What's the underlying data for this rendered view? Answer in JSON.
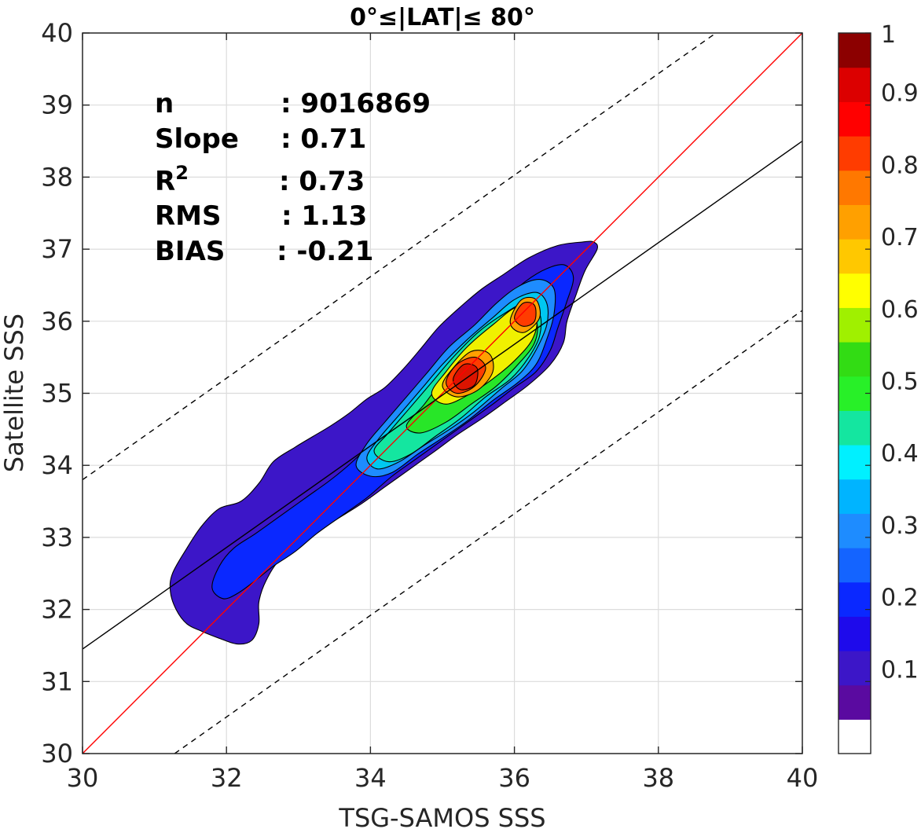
{
  "chart_data": {
    "type": "heatmap",
    "subtype": "filled-contour density scatter",
    "title": "0°≤|LAT|≤ 80°",
    "xlabel": "TSG-SAMOS SSS",
    "ylabel": "Satellite SSS",
    "xlim": [
      30,
      40
    ],
    "ylim": [
      30,
      40
    ],
    "xticks": [
      "30",
      "32",
      "34",
      "36",
      "38",
      "40"
    ],
    "yticks": [
      "30",
      "31",
      "32",
      "33",
      "34",
      "35",
      "36",
      "37",
      "38",
      "39",
      "40"
    ],
    "grid": true,
    "stats": [
      {
        "key": "n",
        "value": ": 9016869"
      },
      {
        "key": "Slope",
        "value": ": 0.71"
      },
      {
        "key": "R",
        "sup": "2",
        "value": ": 0.73"
      },
      {
        "key": "RMS",
        "value": ": 1.13"
      },
      {
        "key": "BIAS",
        "value": ": -0.21"
      }
    ],
    "lines": {
      "identity": {
        "x": [
          30,
          40
        ],
        "y": [
          30,
          40
        ],
        "color": "#ff0000"
      },
      "regression": {
        "x": [
          30,
          40
        ],
        "y": [
          31.45,
          38.5
        ],
        "color": "#000000"
      },
      "upper_bound": {
        "x": [
          30,
          38.8
        ],
        "y": [
          33.8,
          40
        ],
        "color": "#000000",
        "dash": true
      },
      "lower_bound": {
        "x": [
          31.28,
          40
        ],
        "y": [
          30,
          36.15
        ],
        "color": "#000000",
        "dash": true
      }
    },
    "contours": [
      {
        "level": 0.05,
        "color": "#3c16c8",
        "points": [
          [
            31.25,
            32.5
          ],
          [
            31.45,
            32.85
          ],
          [
            31.65,
            33.15
          ],
          [
            31.9,
            33.4
          ],
          [
            32.2,
            33.5
          ],
          [
            32.45,
            33.75
          ],
          [
            32.65,
            34.05
          ],
          [
            32.95,
            34.25
          ],
          [
            33.2,
            34.4
          ],
          [
            33.45,
            34.55
          ],
          [
            33.7,
            34.72
          ],
          [
            33.95,
            34.92
          ],
          [
            34.2,
            35.08
          ],
          [
            34.45,
            35.33
          ],
          [
            34.7,
            35.62
          ],
          [
            34.95,
            35.92
          ],
          [
            35.25,
            36.2
          ],
          [
            35.55,
            36.45
          ],
          [
            35.85,
            36.65
          ],
          [
            36.2,
            36.88
          ],
          [
            36.6,
            37.05
          ],
          [
            36.95,
            37.1
          ],
          [
            37.1,
            37.1
          ],
          [
            37.15,
            37.0
          ],
          [
            36.98,
            36.7
          ],
          [
            36.85,
            36.35
          ],
          [
            36.73,
            36.0
          ],
          [
            36.68,
            35.7
          ],
          [
            36.5,
            35.4
          ],
          [
            36.2,
            35.12
          ],
          [
            35.9,
            34.9
          ],
          [
            35.55,
            34.65
          ],
          [
            35.2,
            34.42
          ],
          [
            34.9,
            34.2
          ],
          [
            34.55,
            33.95
          ],
          [
            34.2,
            33.7
          ],
          [
            33.85,
            33.45
          ],
          [
            33.45,
            33.2
          ],
          [
            33.1,
            32.95
          ],
          [
            32.75,
            32.7
          ],
          [
            32.55,
            32.4
          ],
          [
            32.45,
            32.1
          ],
          [
            32.45,
            31.8
          ],
          [
            32.35,
            31.57
          ],
          [
            32.15,
            31.52
          ],
          [
            31.9,
            31.6
          ],
          [
            31.65,
            31.7
          ],
          [
            31.45,
            31.8
          ],
          [
            31.3,
            32.0
          ],
          [
            31.22,
            32.25
          ]
        ]
      },
      {
        "level": 0.15,
        "color": "#0a28ff",
        "points": [
          [
            31.8,
            32.3
          ],
          [
            31.9,
            32.6
          ],
          [
            32.1,
            32.85
          ],
          [
            32.4,
            33.05
          ],
          [
            32.75,
            33.3
          ],
          [
            33.1,
            33.55
          ],
          [
            33.45,
            33.8
          ],
          [
            33.75,
            34.05
          ],
          [
            34.05,
            34.35
          ],
          [
            34.35,
            34.7
          ],
          [
            34.65,
            35.05
          ],
          [
            34.95,
            35.4
          ],
          [
            35.25,
            35.72
          ],
          [
            35.55,
            36.0
          ],
          [
            35.85,
            36.28
          ],
          [
            36.15,
            36.55
          ],
          [
            36.45,
            36.73
          ],
          [
            36.7,
            36.78
          ],
          [
            36.82,
            36.6
          ],
          [
            36.72,
            36.25
          ],
          [
            36.6,
            35.9
          ],
          [
            36.5,
            35.6
          ],
          [
            36.3,
            35.3
          ],
          [
            36.0,
            35.08
          ],
          [
            35.7,
            34.85
          ],
          [
            35.35,
            34.6
          ],
          [
            35.0,
            34.35
          ],
          [
            34.65,
            34.1
          ],
          [
            34.3,
            33.85
          ],
          [
            33.95,
            33.55
          ],
          [
            33.6,
            33.3
          ],
          [
            33.25,
            33.05
          ],
          [
            32.95,
            32.8
          ],
          [
            32.65,
            32.6
          ],
          [
            32.4,
            32.4
          ],
          [
            32.15,
            32.22
          ],
          [
            31.95,
            32.15
          ]
        ]
      },
      {
        "level": 0.25,
        "color": "#1e8cff",
        "points": [
          [
            33.8,
            34.0
          ],
          [
            33.95,
            34.3
          ],
          [
            34.2,
            34.6
          ],
          [
            34.5,
            34.95
          ],
          [
            34.8,
            35.3
          ],
          [
            35.1,
            35.65
          ],
          [
            35.45,
            35.95
          ],
          [
            35.75,
            36.25
          ],
          [
            36.05,
            36.48
          ],
          [
            36.35,
            36.58
          ],
          [
            36.55,
            36.45
          ],
          [
            36.55,
            36.1
          ],
          [
            36.45,
            35.75
          ],
          [
            36.3,
            35.4
          ],
          [
            36.05,
            35.15
          ],
          [
            35.7,
            34.9
          ],
          [
            35.35,
            34.62
          ],
          [
            35.0,
            34.38
          ],
          [
            34.65,
            34.15
          ],
          [
            34.3,
            33.9
          ],
          [
            34.0,
            33.85
          ]
        ]
      },
      {
        "level": 0.35,
        "color": "#00c8f0",
        "points": [
          [
            33.95,
            34.1
          ],
          [
            34.1,
            34.35
          ],
          [
            34.4,
            34.7
          ],
          [
            34.7,
            35.05
          ],
          [
            35.0,
            35.4
          ],
          [
            35.35,
            35.75
          ],
          [
            35.7,
            36.05
          ],
          [
            36.0,
            36.3
          ],
          [
            36.3,
            36.4
          ],
          [
            36.45,
            36.25
          ],
          [
            36.45,
            35.95
          ],
          [
            36.3,
            35.6
          ],
          [
            36.1,
            35.3
          ],
          [
            35.8,
            35.05
          ],
          [
            35.45,
            34.75
          ],
          [
            35.1,
            34.5
          ],
          [
            34.75,
            34.28
          ],
          [
            34.4,
            34.05
          ],
          [
            34.1,
            33.95
          ]
        ]
      },
      {
        "level": 0.45,
        "color": "#14e6a0",
        "points": [
          [
            34.05,
            34.2
          ],
          [
            34.25,
            34.45
          ],
          [
            34.55,
            34.8
          ],
          [
            34.85,
            35.15
          ],
          [
            35.15,
            35.5
          ],
          [
            35.5,
            35.85
          ],
          [
            35.85,
            36.1
          ],
          [
            36.15,
            36.25
          ],
          [
            36.35,
            36.1
          ],
          [
            36.35,
            35.8
          ],
          [
            36.2,
            35.5
          ],
          [
            35.95,
            35.2
          ],
          [
            35.6,
            34.95
          ],
          [
            35.25,
            34.65
          ],
          [
            34.9,
            34.4
          ],
          [
            34.55,
            34.15
          ],
          [
            34.25,
            34.05
          ]
        ]
      },
      {
        "level": 0.55,
        "color": "#28e628",
        "points": [
          [
            34.5,
            34.55
          ],
          [
            34.75,
            34.85
          ],
          [
            35.05,
            35.25
          ],
          [
            35.35,
            35.6
          ],
          [
            35.7,
            35.95
          ],
          [
            36.05,
            36.15
          ],
          [
            36.3,
            36.0
          ],
          [
            36.28,
            35.7
          ],
          [
            36.05,
            35.4
          ],
          [
            35.75,
            35.1
          ],
          [
            35.4,
            34.85
          ],
          [
            35.05,
            34.6
          ],
          [
            34.7,
            34.45
          ]
        ]
      },
      {
        "level": 0.65,
        "color": "#f0f000",
        "points": [
          [
            34.85,
            35.0
          ],
          [
            35.05,
            35.3
          ],
          [
            35.35,
            35.65
          ],
          [
            35.7,
            35.95
          ],
          [
            36.05,
            36.2
          ],
          [
            36.3,
            36.05
          ],
          [
            36.25,
            35.75
          ],
          [
            36.0,
            35.45
          ],
          [
            35.7,
            35.2
          ],
          [
            35.4,
            35.0
          ],
          [
            35.05,
            34.85
          ]
        ]
      },
      {
        "level": 0.75,
        "color": "#ffa000",
        "points": [
          [
            35.0,
            35.1
          ],
          [
            35.15,
            35.35
          ],
          [
            35.4,
            35.58
          ],
          [
            35.65,
            35.55
          ],
          [
            35.7,
            35.3
          ],
          [
            35.5,
            35.05
          ],
          [
            35.2,
            34.95
          ]
        ]
      },
      {
        "level": 0.75,
        "color": "#ffa000",
        "points": [
          [
            35.95,
            36.05
          ],
          [
            36.1,
            36.3
          ],
          [
            36.3,
            36.3
          ],
          [
            36.35,
            36.05
          ],
          [
            36.15,
            35.85
          ],
          [
            35.98,
            35.9
          ]
        ]
      },
      {
        "level": 0.85,
        "color": "#ff3c00",
        "points": [
          [
            35.05,
            35.15
          ],
          [
            35.2,
            35.4
          ],
          [
            35.45,
            35.5
          ],
          [
            35.6,
            35.35
          ],
          [
            35.45,
            35.1
          ],
          [
            35.2,
            35.0
          ]
        ]
      },
      {
        "level": 0.85,
        "color": "#ff3c00",
        "points": [
          [
            36.0,
            36.05
          ],
          [
            36.12,
            36.25
          ],
          [
            36.28,
            36.22
          ],
          [
            36.28,
            36.0
          ],
          [
            36.12,
            35.93
          ]
        ]
      },
      {
        "level": 0.95,
        "color": "#dc1400",
        "points": [
          [
            35.15,
            35.2
          ],
          [
            35.3,
            35.4
          ],
          [
            35.48,
            35.35
          ],
          [
            35.45,
            35.12
          ],
          [
            35.25,
            35.05
          ]
        ]
      }
    ],
    "colorbar": {
      "ticks": [
        "1",
        "0.9",
        "0.8",
        "0.7",
        "0.6",
        "0.5",
        "0.4",
        "0.3",
        "0.2",
        "0.1"
      ],
      "tick_values": [
        1.0,
        0.9,
        0.8,
        0.7,
        0.6,
        0.5,
        0.4,
        0.3,
        0.2,
        0.1
      ],
      "range": [
        0,
        1
      ],
      "colors": [
        "#ffffff",
        "#5a0aa0",
        "#3c16c8",
        "#1e0aeb",
        "#0a28ff",
        "#1464ff",
        "#1e8cff",
        "#00b4ff",
        "#00f0ff",
        "#14e6a0",
        "#28f028",
        "#32dc14",
        "#a0f000",
        "#ffff00",
        "#ffc800",
        "#ffa000",
        "#ff7800",
        "#ff3c00",
        "#ff0000",
        "#dc0000",
        "#8c0000"
      ]
    }
  }
}
